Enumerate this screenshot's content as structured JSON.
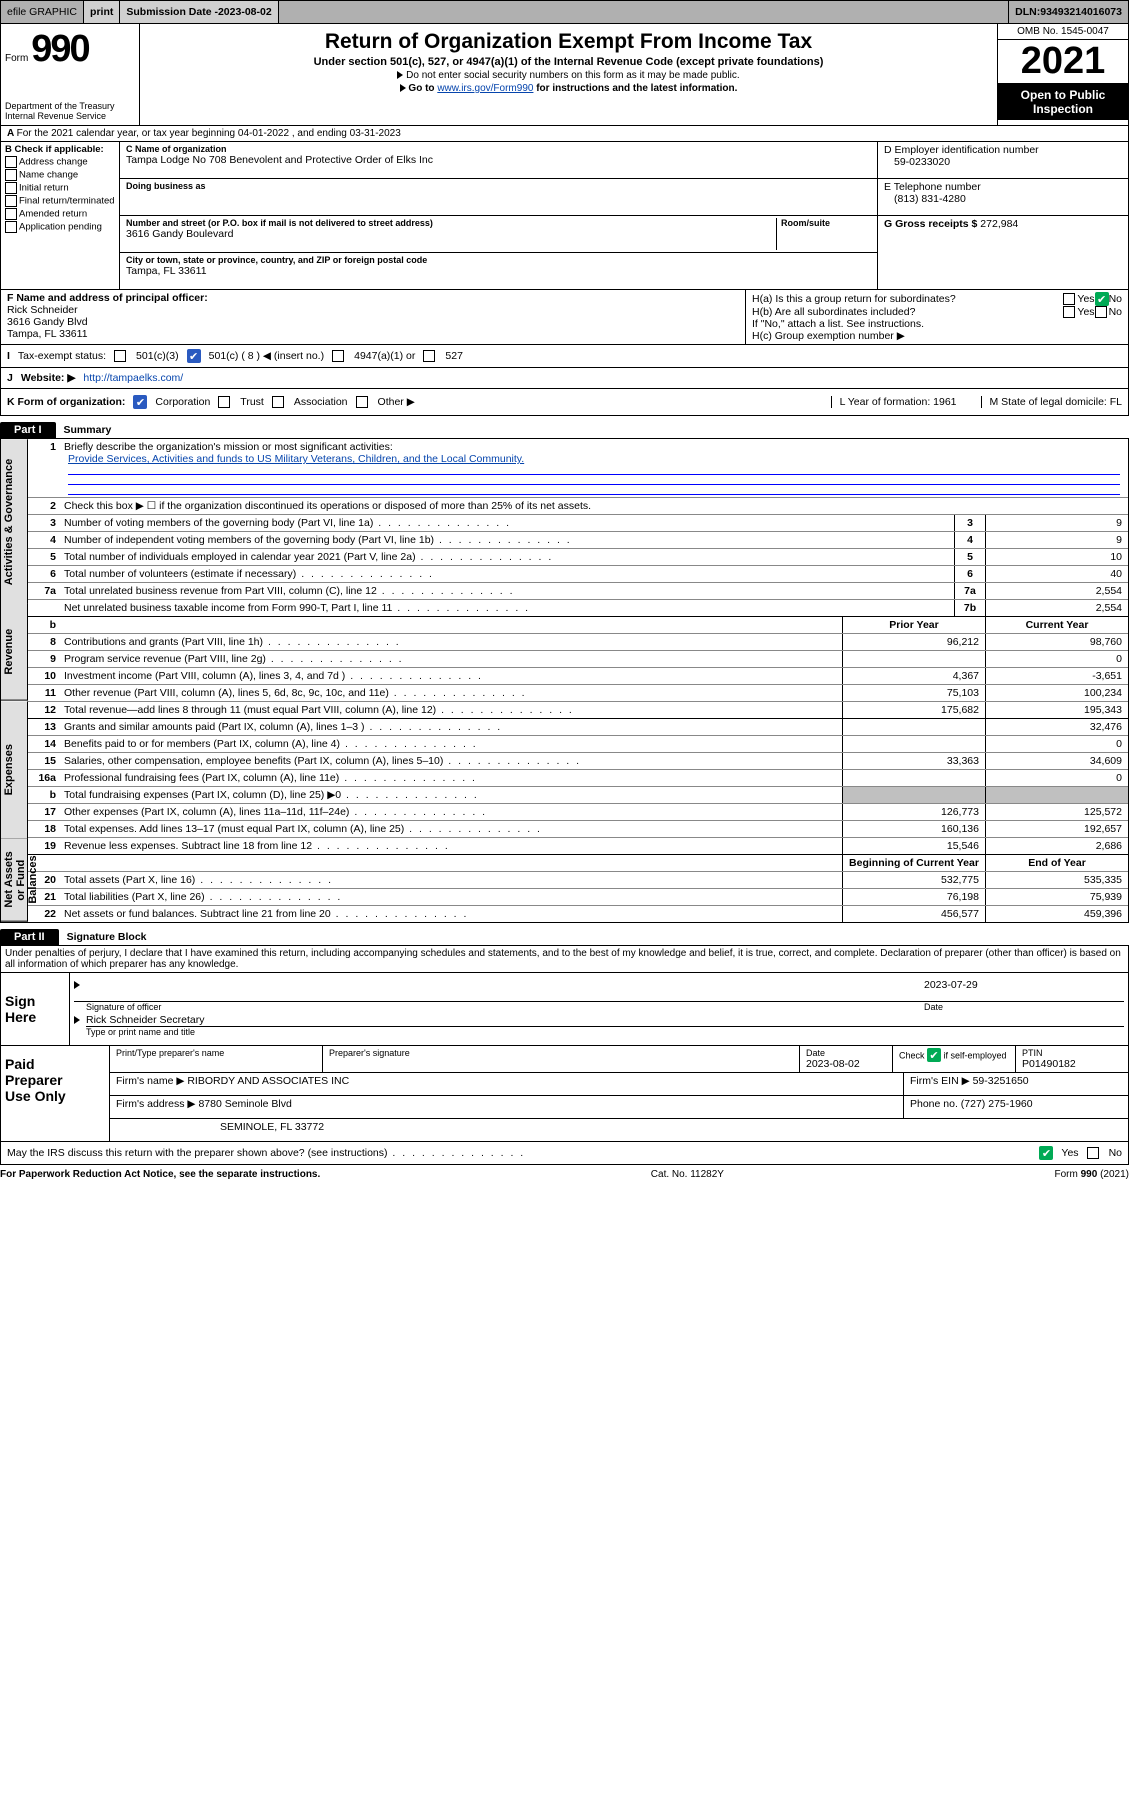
{
  "topbar": {
    "efile": "efile GRAPHIC",
    "print": "print",
    "subdate_label": "Submission Date - ",
    "subdate": "2023-08-02",
    "dln_label": "DLN: ",
    "dln": "93493214016073"
  },
  "header": {
    "form_word": "Form",
    "form_num": "990",
    "dept": "Department of the Treasury",
    "irs": "Internal Revenue Service",
    "title": "Return of Organization Exempt From Income Tax",
    "sub": "Under section 501(c), 527, or 4947(a)(1) of the Internal Revenue Code (except private foundations)",
    "l1": "Do not enter social security numbers on this form as it may be made public.",
    "l2_pre": "Go to ",
    "l2_link": "www.irs.gov/Form990",
    "l2_post": " for instructions and the latest information.",
    "omb": "OMB No. 1545-0047",
    "year": "2021",
    "open1": "Open to Public",
    "open2": "Inspection"
  },
  "row_a": "For the 2021 calendar year, or tax year beginning 04-01-2022   , and ending 03-31-2023",
  "col_b": {
    "hdr": "B Check if applicable:",
    "items": [
      "Address change",
      "Name change",
      "Initial return",
      "Final return/terminated",
      "Amended return",
      "Application pending"
    ]
  },
  "col_c": {
    "name_label": "C Name of organization",
    "name": "Tampa Lodge No 708 Benevolent and Protective Order of Elks Inc",
    "dba_label": "Doing business as",
    "street_label": "Number and street (or P.O. box if mail is not delivered to street address)",
    "room_label": "Room/suite",
    "street": "3616 Gandy Boulevard",
    "city_label": "City or town, state or province, country, and ZIP or foreign postal code",
    "city": "Tampa, FL  33611"
  },
  "col_d": {
    "ein_label": "D Employer identification number",
    "ein": "59-0233020",
    "tel_label": "E Telephone number",
    "tel": "(813) 831-4280",
    "gross_label": "G Gross receipts $ ",
    "gross": "272,984"
  },
  "block_f": {
    "label": "F  Name and address of principal officer:",
    "name": "Rick Schneider",
    "addr1": "3616 Gandy Blvd",
    "addr2": "Tampa, FL  33611"
  },
  "block_h": {
    "ha": "H(a)  Is this a group return for subordinates?",
    "hb": "H(b)  Are all subordinates included?",
    "hb_note": "If \"No,\" attach a list. See instructions.",
    "hc": "H(c)  Group exemption number ▶",
    "yes": "Yes",
    "no": "No"
  },
  "row_i": {
    "label": "Tax-exempt status:",
    "c3": "501(c)(3)",
    "c": "501(c) ( 8 ) ◀ (insert no.)",
    "a1": "4947(a)(1) or",
    "s527": "527"
  },
  "row_j": {
    "label": "Website: ▶",
    "val": "http://tampaelks.com/"
  },
  "row_k": {
    "label": "K Form of organization:",
    "corp": "Corporation",
    "trust": "Trust",
    "assoc": "Association",
    "other": "Other ▶",
    "l": "L Year of formation: 1961",
    "m": "M State of legal domicile: FL"
  },
  "part1": {
    "tab": "Part I",
    "title": "Summary"
  },
  "summary": {
    "vtabs": [
      "Activities & Governance",
      "Revenue",
      "Expenses",
      "Net Assets or Fund Balances"
    ],
    "q1": "Briefly describe the organization's mission or most significant activities:",
    "mission": "Provide Services, Activities and funds to US Military Veterans, Children, and the Local Community.",
    "q2": "Check this box ▶ ☐  if the organization discontinued its operations or disposed of more than 25% of its net assets.",
    "rows_ag": [
      {
        "n": "3",
        "d": "Number of voting members of the governing body (Part VI, line 1a)",
        "c": "3",
        "v": "9"
      },
      {
        "n": "4",
        "d": "Number of independent voting members of the governing body (Part VI, line 1b)",
        "c": "4",
        "v": "9"
      },
      {
        "n": "5",
        "d": "Total number of individuals employed in calendar year 2021 (Part V, line 2a)",
        "c": "5",
        "v": "10"
      },
      {
        "n": "6",
        "d": "Total number of volunteers (estimate if necessary)",
        "c": "6",
        "v": "40"
      },
      {
        "n": "7a",
        "d": "Total unrelated business revenue from Part VIII, column (C), line 12",
        "c": "7a",
        "v": "2,554"
      },
      {
        "n": "",
        "d": "Net unrelated business taxable income from Form 990-T, Part I, line 11",
        "c": "7b",
        "v": "2,554"
      }
    ],
    "hdrb": "b",
    "prior": "Prior Year",
    "current": "Current Year",
    "rows_rev": [
      {
        "n": "8",
        "d": "Contributions and grants (Part VIII, line 1h)",
        "p": "96,212",
        "c": "98,760"
      },
      {
        "n": "9",
        "d": "Program service revenue (Part VIII, line 2g)",
        "p": "",
        "c": "0"
      },
      {
        "n": "10",
        "d": "Investment income (Part VIII, column (A), lines 3, 4, and 7d )",
        "p": "4,367",
        "c": "-3,651"
      },
      {
        "n": "11",
        "d": "Other revenue (Part VIII, column (A), lines 5, 6d, 8c, 9c, 10c, and 11e)",
        "p": "75,103",
        "c": "100,234"
      },
      {
        "n": "12",
        "d": "Total revenue—add lines 8 through 11 (must equal Part VIII, column (A), line 12)",
        "p": "175,682",
        "c": "195,343"
      }
    ],
    "rows_exp": [
      {
        "n": "13",
        "d": "Grants and similar amounts paid (Part IX, column (A), lines 1–3 )",
        "p": "",
        "c": "32,476"
      },
      {
        "n": "14",
        "d": "Benefits paid to or for members (Part IX, column (A), line 4)",
        "p": "",
        "c": "0"
      },
      {
        "n": "15",
        "d": "Salaries, other compensation, employee benefits (Part IX, column (A), lines 5–10)",
        "p": "33,363",
        "c": "34,609"
      },
      {
        "n": "16a",
        "d": "Professional fundraising fees (Part IX, column (A), line 11e)",
        "p": "",
        "c": "0"
      },
      {
        "n": "b",
        "d": "Total fundraising expenses (Part IX, column (D), line 25) ▶0",
        "p": "gray",
        "c": "gray"
      },
      {
        "n": "17",
        "d": "Other expenses (Part IX, column (A), lines 11a–11d, 11f–24e)",
        "p": "126,773",
        "c": "125,572"
      },
      {
        "n": "18",
        "d": "Total expenses. Add lines 13–17 (must equal Part IX, column (A), line 25)",
        "p": "160,136",
        "c": "192,657"
      },
      {
        "n": "19",
        "d": "Revenue less expenses. Subtract line 18 from line 12",
        "p": "15,546",
        "c": "2,686"
      }
    ],
    "beg": "Beginning of Current Year",
    "end": "End of Year",
    "rows_na": [
      {
        "n": "20",
        "d": "Total assets (Part X, line 16)",
        "p": "532,775",
        "c": "535,335"
      },
      {
        "n": "21",
        "d": "Total liabilities (Part X, line 26)",
        "p": "76,198",
        "c": "75,939"
      },
      {
        "n": "22",
        "d": "Net assets or fund balances. Subtract line 21 from line 20",
        "p": "456,577",
        "c": "459,396"
      }
    ]
  },
  "part2": {
    "tab": "Part II",
    "title": "Signature Block"
  },
  "sig": {
    "decl": "Under penalties of perjury, I declare that I have examined this return, including accompanying schedules and statements, and to the best of my knowledge and belief, it is true, correct, and complete. Declaration of preparer (other than officer) is based on all information of which preparer has any knowledge.",
    "sign": "Sign",
    "here": "Here",
    "sig_of": "Signature of officer",
    "date_label": "Date",
    "date": "2023-07-29",
    "officer": "Rick Schneider Secretary",
    "type": "Type or print name and title"
  },
  "paid": {
    "l1": "Paid",
    "l2": "Preparer",
    "l3": "Use Only",
    "h1": "Print/Type preparer's name",
    "h2": "Preparer's signature",
    "h3": "Date",
    "h4": "Check ",
    "h4b": " if self-employed",
    "h5": "PTIN",
    "date": "2023-08-02",
    "ptin": "P01490182",
    "firm_label": "Firm's name      ▶",
    "firm": "RIBORDY AND ASSOCIATES INC",
    "ein_label": "Firm's EIN ▶",
    "ein": "59-3251650",
    "addr_label": "Firm's address ▶",
    "addr1": "8780 Seminole Blvd",
    "addr2": "SEMINOLE, FL  33772",
    "phone_label": "Phone no. ",
    "phone": "(727) 275-1960"
  },
  "may": "May the IRS discuss this return with the preparer shown above? (see instructions)",
  "footer": {
    "l": "For Paperwork Reduction Act Notice, see the separate instructions.",
    "c": "Cat. No. 11282Y",
    "r": "Form 990 (2021)"
  }
}
